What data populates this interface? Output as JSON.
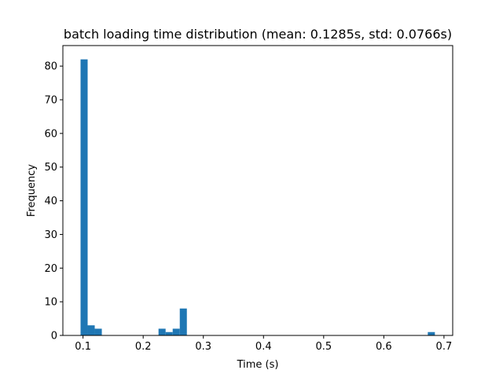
{
  "chart_data": {
    "type": "bar",
    "title": "batch loading time distribution (mean: 0.1285s, std: 0.0766s)",
    "xlabel": "Time (s)",
    "ylabel": "Frequency",
    "xlim": [
      0.0665,
      0.7145
    ],
    "ylim": [
      0,
      86.1
    ],
    "xticks": [
      0.1,
      0.2,
      0.3,
      0.4,
      0.5,
      0.6,
      0.7
    ],
    "xtick_labels": [
      "0.1",
      "0.2",
      "0.3",
      "0.4",
      "0.5",
      "0.6",
      "0.7"
    ],
    "yticks": [
      0,
      10,
      20,
      30,
      40,
      50,
      60,
      70,
      80
    ],
    "ytick_labels": [
      "0",
      "10",
      "20",
      "30",
      "40",
      "50",
      "60",
      "70",
      "80"
    ],
    "bin_start": 0.0959,
    "bin_width": 0.01178,
    "bins": [
      {
        "index": 0,
        "count": 82
      },
      {
        "index": 1,
        "count": 3
      },
      {
        "index": 2,
        "count": 2
      },
      {
        "index": 11,
        "count": 2
      },
      {
        "index": 12,
        "count": 1
      },
      {
        "index": 13,
        "count": 2
      },
      {
        "index": 14,
        "count": 8
      },
      {
        "index": 49,
        "count": 1
      }
    ],
    "bar_color": "#1f77b4",
    "grid": false,
    "legend": "none"
  }
}
